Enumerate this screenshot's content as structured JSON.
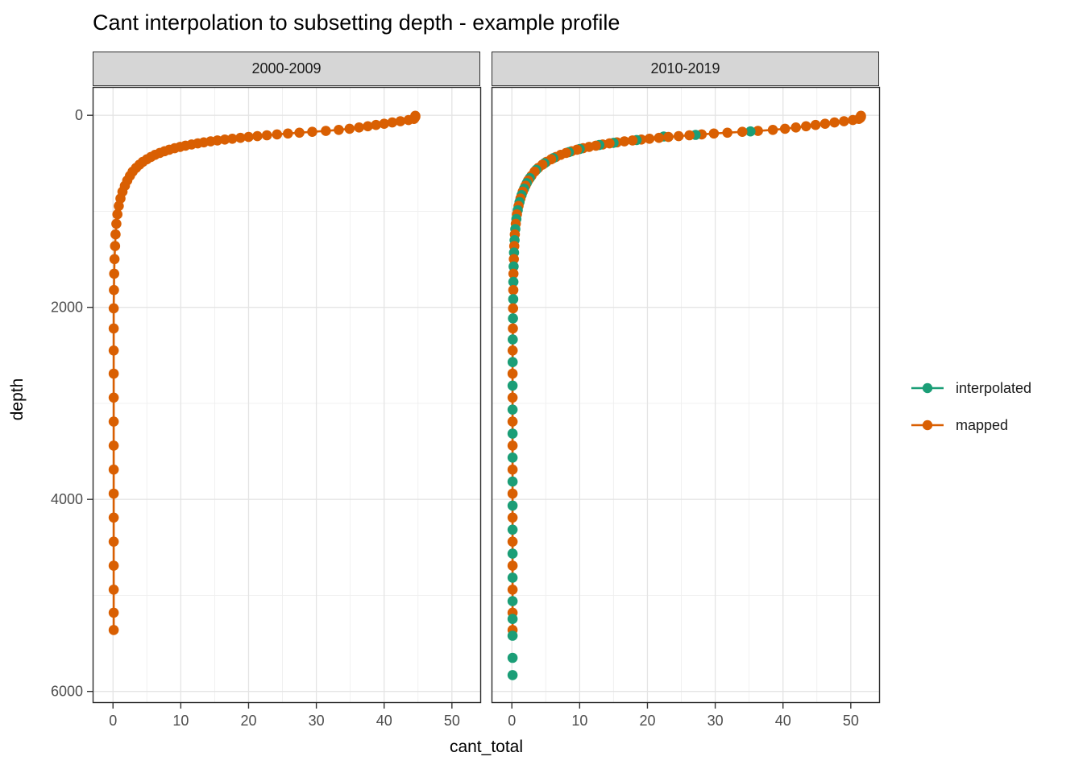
{
  "title": "Cant interpolation to subsetting depth - example profile",
  "axes": {
    "x_label": "cant_total",
    "y_label": "depth"
  },
  "legend": {
    "items": [
      {
        "label": "interpolated",
        "color": "#1B9E77"
      },
      {
        "label": "mapped",
        "color": "#D95F02"
      }
    ]
  },
  "style": {
    "strip_fill": "#d6d6d6",
    "panel_border": "#2b2b2b",
    "grid_major": "#e4e4e4",
    "grid_minor": "#efefef",
    "tick_color": "#333333",
    "tick_label_color": "#4d4d4d"
  },
  "chart_data": {
    "type": "scatter",
    "title": "Cant interpolation to subsetting depth - example profile",
    "xlabel": "cant_total",
    "ylabel": "depth",
    "x_ticks": [
      0,
      10,
      20,
      30,
      40,
      50
    ],
    "x_minor": [
      5,
      15,
      25,
      35,
      45
    ],
    "y_ticks": [
      0,
      2000,
      4000,
      6000
    ],
    "y_minor": [
      1000,
      3000,
      5000
    ],
    "xlim": [
      -3,
      54.3
    ],
    "ylim": [
      -295,
      6120
    ],
    "y_reversed": true,
    "grid": true,
    "legend_position": "right",
    "facets": [
      {
        "label": "2000-2009",
        "series": [
          {
            "name": "mapped",
            "color": "#D95F02",
            "line": true,
            "points": [
              [
                44.6,
                5
              ],
              [
                44.6,
                16
              ],
              [
                44.5,
                27
              ],
              [
                44.4,
                38
              ],
              [
                43.6,
                50
              ],
              [
                42.4,
                62
              ],
              [
                41.2,
                75
              ],
              [
                40.0,
                88
              ],
              [
                38.8,
                101
              ],
              [
                37.6,
                114
              ],
              [
                36.3,
                127
              ],
              [
                34.9,
                140
              ],
              [
                33.3,
                152
              ],
              [
                31.4,
                163
              ],
              [
                29.4,
                172
              ],
              [
                27.5,
                181
              ],
              [
                25.8,
                190
              ],
              [
                24.2,
                199
              ],
              [
                22.7,
                208
              ],
              [
                21.3,
                217
              ],
              [
                20.0,
                226
              ],
              [
                18.8,
                235
              ],
              [
                17.6,
                244
              ],
              [
                16.5,
                253
              ],
              [
                15.4,
                262
              ],
              [
                14.4,
                272
              ],
              [
                13.4,
                282
              ],
              [
                12.5,
                293
              ],
              [
                11.6,
                304
              ],
              [
                10.7,
                316
              ],
              [
                9.9,
                329
              ],
              [
                9.1,
                343
              ],
              [
                8.3,
                358
              ],
              [
                7.6,
                374
              ],
              [
                6.9,
                392
              ],
              [
                6.2,
                412
              ],
              [
                5.6,
                434
              ],
              [
                5.0,
                458
              ],
              [
                4.4,
                485
              ],
              [
                3.9,
                515
              ],
              [
                3.4,
                549
              ],
              [
                2.9,
                587
              ],
              [
                2.5,
                630
              ],
              [
                2.1,
                679
              ],
              [
                1.75,
                734
              ],
              [
                1.4,
                796
              ],
              [
                1.1,
                866
              ],
              [
                0.85,
                944
              ],
              [
                0.65,
                1032
              ],
              [
                0.5,
                1130
              ],
              [
                0.38,
                1240
              ],
              [
                0.3,
                1362
              ],
              [
                0.22,
                1498
              ],
              [
                0.18,
                1650
              ],
              [
                0.14,
                1820
              ],
              [
                0.1,
                2010
              ],
              [
                0.1,
                2220
              ],
              [
                0.1,
                2450
              ],
              [
                0.1,
                2690
              ],
              [
                0.1,
                2940
              ],
              [
                0.1,
                3190
              ],
              [
                0.1,
                3440
              ],
              [
                0.1,
                3690
              ],
              [
                0.1,
                3940
              ],
              [
                0.1,
                4190
              ],
              [
                0.1,
                4440
              ],
              [
                0.1,
                4690
              ],
              [
                0.1,
                4940
              ],
              [
                0.1,
                5180
              ],
              [
                0.1,
                5360
              ]
            ]
          }
        ]
      },
      {
        "label": "2010-2019",
        "series": [
          {
            "name": "mapped",
            "color": "#D95F02",
            "line": true,
            "points": [
              [
                51.5,
                5
              ],
              [
                51.5,
                16
              ],
              [
                51.4,
                27
              ],
              [
                51.2,
                38
              ],
              [
                50.3,
                50
              ],
              [
                49.0,
                62
              ],
              [
                47.6,
                75
              ],
              [
                46.2,
                88
              ],
              [
                44.8,
                101
              ],
              [
                43.4,
                114
              ],
              [
                41.9,
                127
              ],
              [
                40.3,
                140
              ],
              [
                38.5,
                152
              ],
              [
                36.3,
                163
              ],
              [
                34.0,
                172
              ],
              [
                31.8,
                181
              ],
              [
                29.8,
                190
              ],
              [
                28.0,
                199
              ],
              [
                26.2,
                208
              ],
              [
                24.6,
                217
              ],
              [
                23.1,
                226
              ],
              [
                21.7,
                235
              ],
              [
                20.3,
                244
              ],
              [
                19.1,
                253
              ],
              [
                17.8,
                262
              ],
              [
                16.6,
                272
              ],
              [
                15.5,
                282
              ],
              [
                14.4,
                293
              ],
              [
                13.4,
                304
              ],
              [
                12.4,
                316
              ],
              [
                11.4,
                329
              ],
              [
                10.5,
                343
              ],
              [
                9.6,
                358
              ],
              [
                8.8,
                374
              ],
              [
                8.0,
                392
              ],
              [
                7.2,
                412
              ],
              [
                6.5,
                434
              ],
              [
                5.8,
                458
              ],
              [
                5.1,
                485
              ],
              [
                4.5,
                515
              ],
              [
                3.9,
                549
              ],
              [
                3.35,
                587
              ],
              [
                2.9,
                630
              ],
              [
                2.4,
                679
              ],
              [
                2.0,
                734
              ],
              [
                1.6,
                796
              ],
              [
                1.27,
                866
              ],
              [
                0.98,
                944
              ],
              [
                0.75,
                1032
              ],
              [
                0.58,
                1130
              ],
              [
                0.44,
                1240
              ],
              [
                0.35,
                1362
              ],
              [
                0.29,
                1498
              ],
              [
                0.23,
                1650
              ],
              [
                0.21,
                1820
              ],
              [
                0.18,
                2010
              ],
              [
                0.15,
                2220
              ],
              [
                0.12,
                2450
              ],
              [
                0.1,
                2690
              ],
              [
                0.1,
                2940
              ],
              [
                0.1,
                3190
              ],
              [
                0.1,
                3440
              ],
              [
                0.1,
                3690
              ],
              [
                0.1,
                3940
              ],
              [
                0.1,
                4190
              ],
              [
                0.1,
                4440
              ],
              [
                0.1,
                4690
              ],
              [
                0.1,
                4940
              ],
              [
                0.1,
                5180
              ],
              [
                0.1,
                5360
              ]
            ]
          },
          {
            "name": "interpolated",
            "color": "#1B9E77",
            "line": false,
            "points": [
              [
                35.2,
                168
              ],
              [
                27.1,
                204
              ],
              [
                22.4,
                221
              ],
              [
                18.4,
                258
              ],
              [
                15.0,
                287
              ],
              [
                12.9,
                310
              ],
              [
                10.0,
                351
              ],
              [
                8.4,
                383
              ],
              [
                6.1,
                446
              ],
              [
                4.8,
                500
              ],
              [
                3.6,
                568
              ],
              [
                2.65,
                654
              ],
              [
                2.2,
                706
              ],
              [
                1.8,
                765
              ],
              [
                1.43,
                831
              ],
              [
                1.12,
                905
              ],
              [
                0.86,
                988
              ],
              [
                0.66,
                1081
              ],
              [
                0.51,
                1185
              ],
              [
                0.4,
                1301
              ],
              [
                0.32,
                1430
              ],
              [
                0.26,
                1574
              ],
              [
                0.22,
                1735
              ],
              [
                0.2,
                1915
              ],
              [
                0.16,
                2115
              ],
              [
                0.13,
                2335
              ],
              [
                0.11,
                2570
              ],
              [
                0.1,
                2815
              ],
              [
                0.1,
                3065
              ],
              [
                0.1,
                3315
              ],
              [
                0.1,
                3565
              ],
              [
                0.1,
                3815
              ],
              [
                0.1,
                4065
              ],
              [
                0.1,
                4315
              ],
              [
                0.1,
                4565
              ],
              [
                0.1,
                4815
              ],
              [
                0.1,
                5060
              ],
              [
                0.1,
                5245
              ],
              [
                0.1,
                5420
              ],
              [
                0.1,
                5650
              ],
              [
                0.1,
                5830
              ]
            ]
          }
        ]
      }
    ]
  }
}
